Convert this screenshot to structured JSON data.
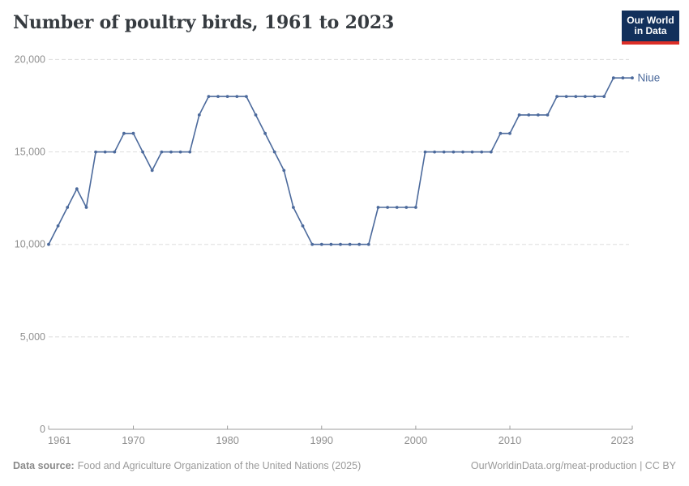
{
  "header": {
    "title": "Number of poultry birds, 1961 to 2023",
    "logo_line1": "Our World",
    "logo_line2": "in Data",
    "logo_bg_color": "#12305b",
    "logo_accent_color": "#dc2e27"
  },
  "footer": {
    "source_label": "Data source:",
    "source_text": "Food and Agriculture Organization of the United Nations (2025)",
    "credit": "OurWorldinData.org/meat-production | CC BY"
  },
  "chart_data": {
    "type": "line",
    "title": "Number of poultry birds, 1961 to 2023",
    "xlabel": "",
    "ylabel": "",
    "xlim": [
      1961,
      2023
    ],
    "ylim": [
      0,
      20000
    ],
    "xticks": [
      1961,
      1970,
      1980,
      1990,
      2000,
      2010,
      2023
    ],
    "yticks": [
      0,
      5000,
      10000,
      15000,
      20000
    ],
    "grid": true,
    "legend_position": "end-of-line",
    "line_color": "#4c6a9c",
    "grid_color": "#dedede",
    "axis_color": "#9e9e9e",
    "tick_label_color": "#8f8f8f",
    "series": [
      {
        "name": "Niue",
        "x": [
          1961,
          1962,
          1963,
          1964,
          1965,
          1966,
          1967,
          1968,
          1969,
          1970,
          1971,
          1972,
          1973,
          1974,
          1975,
          1976,
          1977,
          1978,
          1979,
          1980,
          1981,
          1982,
          1983,
          1984,
          1985,
          1986,
          1987,
          1988,
          1989,
          1990,
          1991,
          1992,
          1993,
          1994,
          1995,
          1996,
          1997,
          1998,
          1999,
          2000,
          2001,
          2002,
          2003,
          2004,
          2005,
          2006,
          2007,
          2008,
          2009,
          2010,
          2011,
          2012,
          2013,
          2014,
          2015,
          2016,
          2017,
          2018,
          2019,
          2020,
          2021,
          2022,
          2023
        ],
        "values": [
          10000,
          11000,
          12000,
          13000,
          12000,
          15000,
          15000,
          15000,
          16000,
          16000,
          15000,
          14000,
          15000,
          15000,
          15000,
          15000,
          17000,
          18000,
          18000,
          18000,
          18000,
          18000,
          17000,
          16000,
          15000,
          14000,
          12000,
          11000,
          10000,
          10000,
          10000,
          10000,
          10000,
          10000,
          10000,
          12000,
          12000,
          12000,
          12000,
          12000,
          15000,
          15000,
          15000,
          15000,
          15000,
          15000,
          15000,
          15000,
          16000,
          16000,
          17000,
          17000,
          17000,
          17000,
          18000,
          18000,
          18000,
          18000,
          18000,
          18000,
          19000,
          19000,
          19000
        ]
      }
    ]
  }
}
